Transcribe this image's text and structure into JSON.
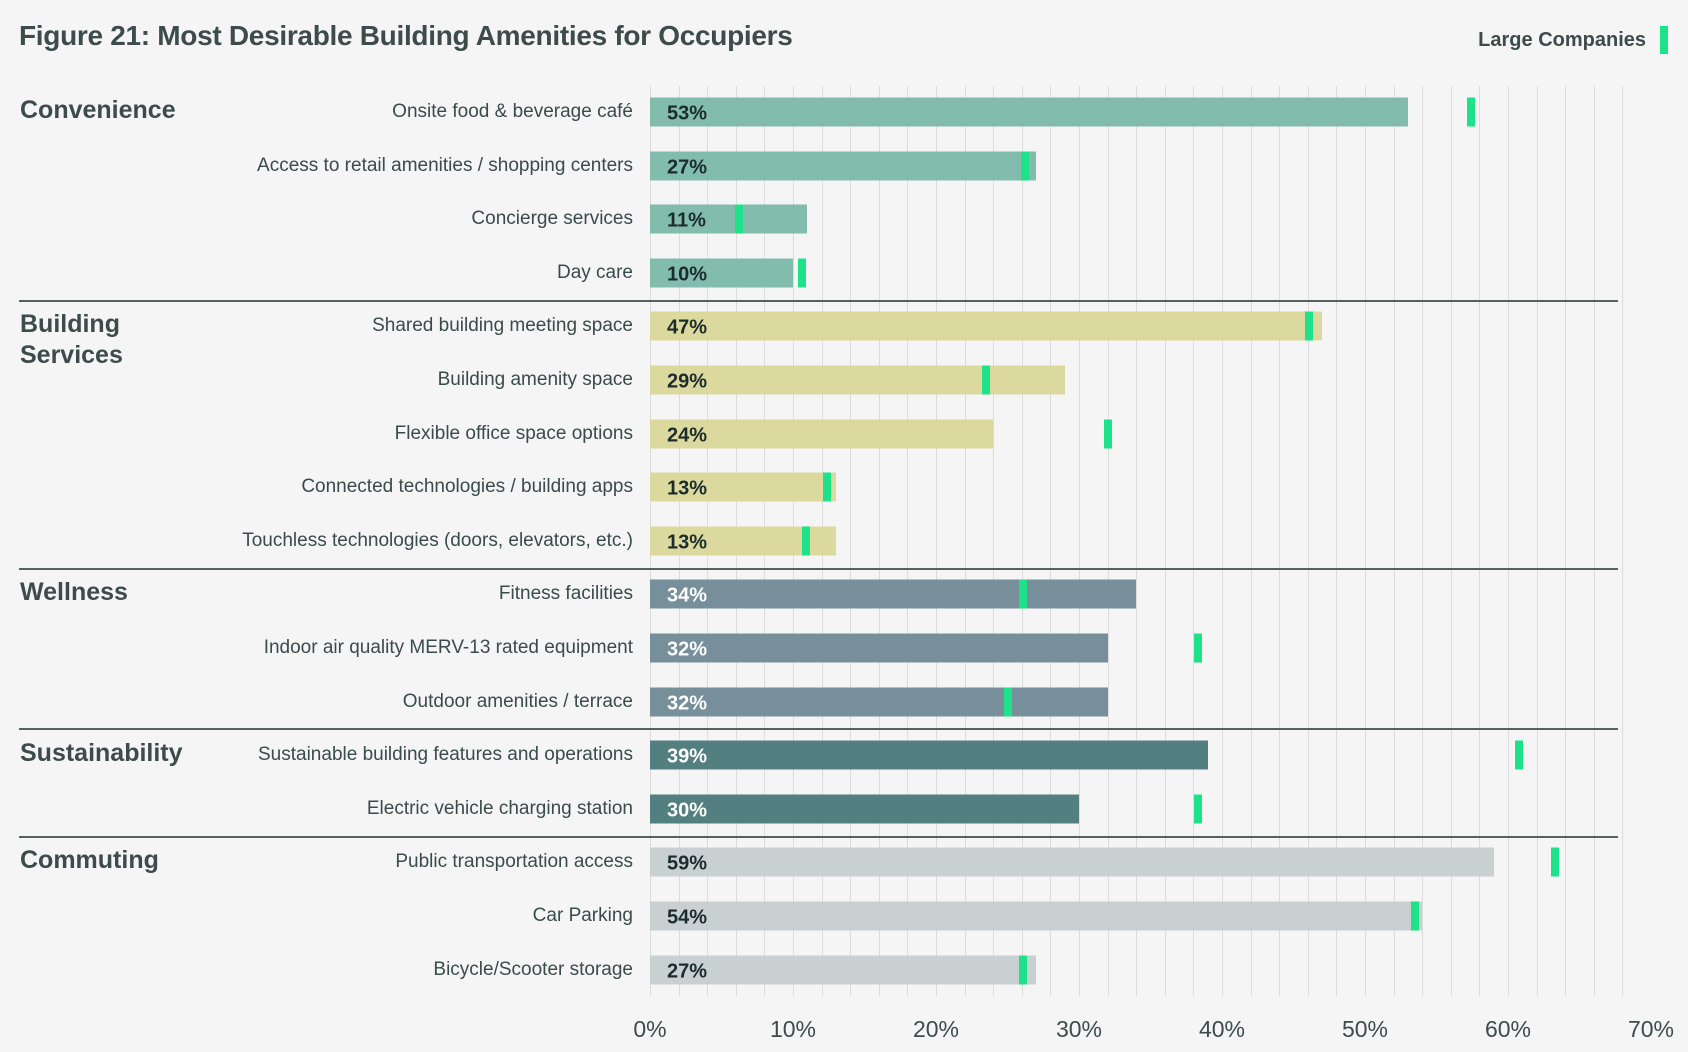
{
  "title": "Figure 21: Most Desirable Building Amenities for Occupiers",
  "legend": {
    "label": "Large Companies",
    "color": "#1de28a"
  },
  "chart_data": {
    "type": "bar",
    "orientation": "horizontal",
    "title": "Figure 21: Most Desirable Building Amenities for Occupiers",
    "xlim": [
      0,
      70
    ],
    "x_ticks": [
      "0%",
      "10%",
      "20%",
      "30%",
      "40%",
      "50%",
      "60%",
      "70%"
    ],
    "grid": true,
    "legend_position": "top-right",
    "groups": [
      {
        "name": "Convenience",
        "color": "#82bcad",
        "text_color": "#1c2b2b"
      },
      {
        "name": "Building Services",
        "color": "#dcd99e",
        "text_color": "#1c2b2b"
      },
      {
        "name": "Wellness",
        "color": "#778f9b",
        "text_color": "#ffffff"
      },
      {
        "name": "Sustainability",
        "color": "#537f80",
        "text_color": "#ffffff"
      },
      {
        "name": "Commuting",
        "color": "#c8d0d2",
        "text_color": "#1c2b2b"
      }
    ],
    "rows": [
      {
        "group": 0,
        "label": "Onsite food & beverage café",
        "value": 53,
        "value_label": "53%",
        "large_companies": 57.4
      },
      {
        "group": 0,
        "label": "Access to retail amenities / shopping centers",
        "value": 27,
        "value_label": "27%",
        "large_companies": 26.2
      },
      {
        "group": 0,
        "label": "Concierge services",
        "value": 11,
        "value_label": "11%",
        "large_companies": 6.2
      },
      {
        "group": 0,
        "label": "Day care",
        "value": 10,
        "value_label": "10%",
        "large_companies": 10.6
      },
      {
        "group": 1,
        "label": "Shared building meeting space",
        "value": 47,
        "value_label": "47%",
        "large_companies": 46.1
      },
      {
        "group": 1,
        "label": "Building amenity space",
        "value": 29,
        "value_label": "29%",
        "large_companies": 23.5
      },
      {
        "group": 1,
        "label": "Flexible office space options",
        "value": 24,
        "value_label": "24%",
        "large_companies": 32
      },
      {
        "group": 1,
        "label": "Connected technologies / building apps",
        "value": 13,
        "value_label": "13%",
        "large_companies": 12.4
      },
      {
        "group": 1,
        "label": "Touchless technologies (doors, elevators, etc.)",
        "value": 13,
        "value_label": "13%",
        "large_companies": 10.9
      },
      {
        "group": 2,
        "label": "Fitness facilities",
        "value": 34,
        "value_label": "34%",
        "large_companies": 26.1
      },
      {
        "group": 2,
        "label": "Indoor air quality MERV-13 rated equipment",
        "value": 32,
        "value_label": "32%",
        "large_companies": 38.3
      },
      {
        "group": 2,
        "label": "Outdoor amenities / terrace",
        "value": 32,
        "value_label": "32%",
        "large_companies": 25
      },
      {
        "group": 3,
        "label": "Sustainable building features and operations",
        "value": 39,
        "value_label": "39%",
        "large_companies": 60.8
      },
      {
        "group": 3,
        "label": "Electric vehicle charging station",
        "value": 30,
        "value_label": "30%",
        "large_companies": 38.3
      },
      {
        "group": 4,
        "label": "Public transportation access",
        "value": 59,
        "value_label": "59%",
        "large_companies": 63.3
      },
      {
        "group": 4,
        "label": "Car Parking",
        "value": 54,
        "value_label": "54%",
        "large_companies": 53.5
      },
      {
        "group": 4,
        "label": "Bicycle/Scooter storage",
        "value": 27,
        "value_label": "27%",
        "large_companies": 26.1
      }
    ]
  }
}
